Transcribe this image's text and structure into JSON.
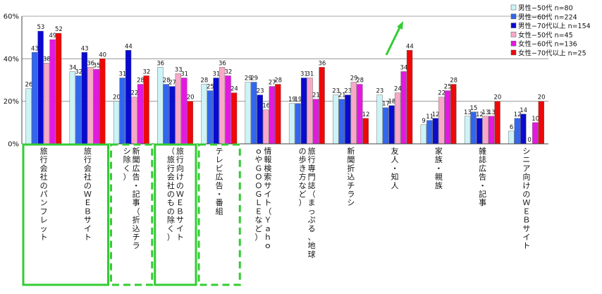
{
  "chart_data": {
    "type": "bar",
    "title": "",
    "xlabel": "",
    "ylabel": "",
    "ylim": [
      0,
      60
    ],
    "yticks": [
      "0%",
      "20%",
      "40%",
      "60%"
    ],
    "grid": true,
    "legend_position": "top-right",
    "categories": [
      [
        "旅行会社のパンフレット"
      ],
      [
        "旅行会社のＷＥＢサイト"
      ],
      [
        "新聞広告・記事（折込チラ",
        "シ除く）"
      ],
      [
        "旅行向けのＷＥＢサイト",
        "（旅行会社のもの除く）"
      ],
      [
        "テレビ広告・番組"
      ],
      [
        "情報検索サイト（Ｙａｈｏ",
        "ｏやＧＯＯＧＬＥなど）"
      ],
      [
        "旅行専門誌（まっぷる、地球",
        "の歩き方など）"
      ],
      [
        "新聞折込チラシ"
      ],
      [
        "友人・知人"
      ],
      [
        "家族・親族"
      ],
      [
        "雑誌広告・記事"
      ],
      [
        "シニア向けのＷＥＢサイト"
      ]
    ],
    "series": [
      {
        "name": "男性−50代  n=80",
        "color": "#ccf4f8",
        "values": [
          26,
          34,
          20,
          36,
          28,
          29,
          19,
          23,
          23,
          9,
          13,
          6
        ]
      },
      {
        "name": "男性−60代  n=224",
        "color": "#3366ee",
        "values": [
          43,
          32,
          31,
          28,
          25,
          29,
          19,
          21,
          17,
          11,
          15,
          12
        ]
      },
      {
        "name": "男性−70代以上  n=154",
        "color": "#0a0ad0",
        "values": [
          53,
          43,
          44,
          27,
          31,
          23,
          31,
          23,
          18,
          12,
          12,
          14
        ]
      },
      {
        "name": "女性−50代  n=45",
        "color": "#f8a8c8",
        "values": [
          38,
          36,
          22,
          33,
          36,
          16,
          31,
          29,
          24,
          22,
          13,
          0
        ]
      },
      {
        "name": "女性−60代  n=136",
        "color": "#e418e0",
        "values": [
          49,
          35,
          28,
          31,
          32,
          27,
          21,
          28,
          34,
          25,
          13,
          10
        ]
      },
      {
        "name": "女性−70代以上  n=25",
        "color": "#ee0808",
        "values": [
          52,
          40,
          32,
          20,
          24,
          28,
          36,
          12,
          44,
          28,
          20,
          20
        ]
      }
    ],
    "highlight_solid": [
      0,
      1
    ],
    "highlight_dashed": [
      2,
      4
    ],
    "arrow_color": "#33cc33"
  }
}
